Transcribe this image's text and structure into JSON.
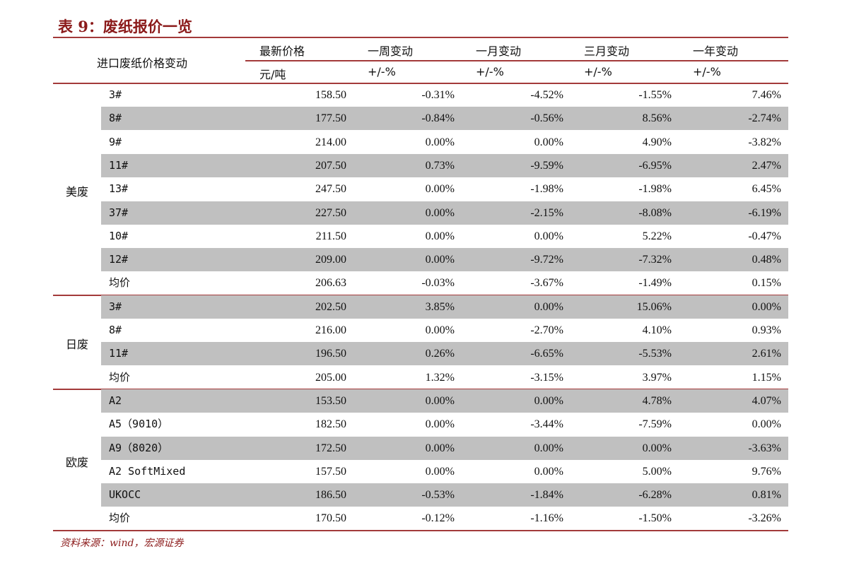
{
  "title": "表 9：废纸报价一览",
  "header": {
    "row_label": "进口废纸价格变动",
    "columns": [
      "最新价格",
      "一周变动",
      "一月变动",
      "三月变动",
      "一年变动"
    ],
    "units": [
      "元/吨",
      "+/-%",
      "+/-%",
      "+/-%",
      "+/-%"
    ]
  },
  "groups": [
    {
      "label": "美废",
      "rows": [
        [
          "3#",
          "158.50",
          "-0.31%",
          "-4.52%",
          "-1.55%",
          "7.46%"
        ],
        [
          "8#",
          "177.50",
          "-0.84%",
          "-0.56%",
          "8.56%",
          "-2.74%"
        ],
        [
          "9#",
          "214.00",
          "0.00%",
          "0.00%",
          "4.90%",
          "-3.82%"
        ],
        [
          "11#",
          "207.50",
          "0.73%",
          "-9.59%",
          "-6.95%",
          "2.47%"
        ],
        [
          "13#",
          "247.50",
          "0.00%",
          "-1.98%",
          "-1.98%",
          "6.45%"
        ],
        [
          "37#",
          "227.50",
          "0.00%",
          "-2.15%",
          "-8.08%",
          "-6.19%"
        ],
        [
          "10#",
          "211.50",
          "0.00%",
          "0.00%",
          "5.22%",
          "-0.47%"
        ],
        [
          "12#",
          "209.00",
          "0.00%",
          "-9.72%",
          "-7.32%",
          "0.48%"
        ],
        [
          "均价",
          "206.63",
          "-0.03%",
          "-3.67%",
          "-1.49%",
          "0.15%"
        ]
      ]
    },
    {
      "label": "日废",
      "rows": [
        [
          "3#",
          "202.50",
          "3.85%",
          "0.00%",
          "15.06%",
          "0.00%"
        ],
        [
          "8#",
          "216.00",
          "0.00%",
          "-2.70%",
          "4.10%",
          "0.93%"
        ],
        [
          "11#",
          "196.50",
          "0.26%",
          "-6.65%",
          "-5.53%",
          "2.61%"
        ],
        [
          "均价",
          "205.00",
          "1.32%",
          "-3.15%",
          "3.97%",
          "1.15%"
        ]
      ]
    },
    {
      "label": "欧废",
      "rows": [
        [
          "A2",
          "153.50",
          "0.00%",
          "0.00%",
          "4.78%",
          "4.07%"
        ],
        [
          "A5（9010）",
          "182.50",
          "0.00%",
          "-3.44%",
          "-7.59%",
          "0.00%"
        ],
        [
          "A9（8020）",
          "172.50",
          "0.00%",
          "0.00%",
          "0.00%",
          "-3.63%"
        ],
        [
          "A2 SoftMixed",
          "157.50",
          "0.00%",
          "0.00%",
          "5.00%",
          "9.76%"
        ],
        [
          "UKOCC",
          "186.50",
          "-0.53%",
          "-1.84%",
          "-6.28%",
          "0.81%"
        ],
        [
          "均价",
          "170.50",
          "-0.12%",
          "-1.16%",
          "-1.50%",
          "-3.26%"
        ]
      ]
    }
  ],
  "source": "资料来源：wind，宏源证券",
  "colors": {
    "accent": "#a33a3a",
    "shade": "#c0c0c0"
  }
}
